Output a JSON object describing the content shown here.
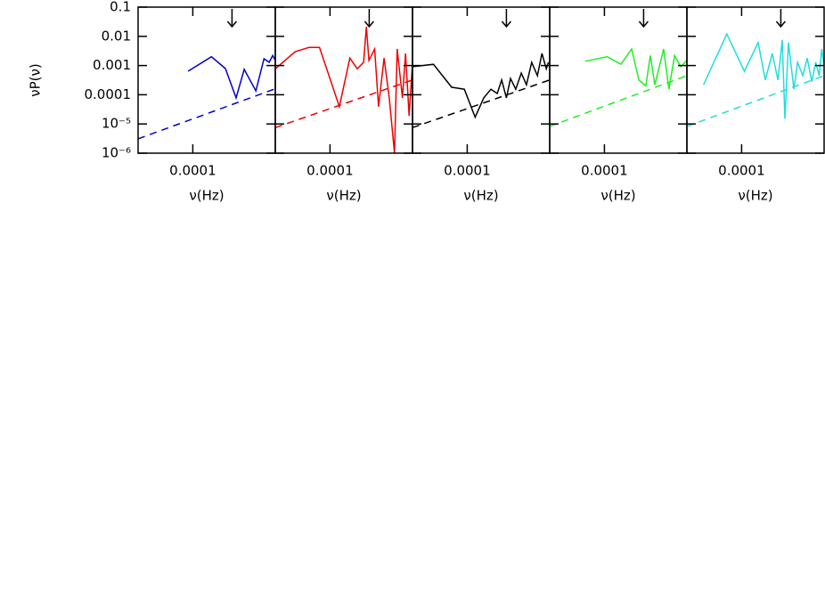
{
  "chart_data": [
    {
      "type": "line",
      "log_x": true,
      "log_y": true,
      "xlim": [
        3.8e-05,
        0.00043
      ],
      "ylim": [
        1e-06,
        0.1
      ],
      "xticks": [
        0.0001
      ],
      "xlabel": "ν(Hz)",
      "ylabel": "νP(ν)",
      "yticks": [
        0.1,
        0.01,
        0.001,
        0.0001,
        {
          "value": 1e-05,
          "label": "10⁻⁵"
        },
        {
          "value": 1e-06,
          "label": "10⁻⁶"
        }
      ],
      "arrow_x": 0.0002,
      "series": [
        {
          "color": "#0000cc",
          "style": "solid",
          "x": [
            9.2e-05,
            0.000139,
            0.000178,
            0.000215,
            0.000248,
            0.000305,
            0.000352,
            0.000386,
            0.000411,
            0.00043
          ],
          "values": [
            0.00064,
            0.002,
            0.00079,
            7.8e-05,
            0.00074,
            0.000135,
            0.0017,
            0.0013,
            0.0022,
            0.0015
          ]
        },
        {
          "color": "#0000cc",
          "style": "dashed",
          "x": [
            3.8e-05,
            0.00043
          ],
          "values": [
            3.1e-06,
            0.00016
          ]
        }
      ]
    },
    {
      "type": "line",
      "log_x": true,
      "log_y": true,
      "xlim": [
        3.8e-05,
        0.00043
      ],
      "ylim": [
        1e-06,
        0.1
      ],
      "xticks": [
        0.0001
      ],
      "xlabel": "ν(Hz)",
      "arrow_x": 0.0002,
      "series": [
        {
          "color": "#ee0000",
          "style": "solid",
          "x": [
            3.8e-05,
            5.4e-05,
            6.9e-05,
            8.3e-05,
            0.0001,
            0.000118,
            0.000142,
            0.000162,
            0.000181,
            0.00019,
            0.000199,
            0.00022,
            0.000236,
            0.00026,
            0.000285,
            0.000313,
            0.000328,
            0.00036,
            0.00038,
            0.000405,
            0.00043
          ],
          "values": [
            0.00077,
            0.003,
            0.0042,
            0.0042,
            0.00036,
            3.9e-05,
            0.0018,
            0.00077,
            0.00129,
            0.021,
            0.0015,
            0.0037,
            3.9e-05,
            0.0018,
            7.8e-05,
            1e-06,
            0.0037,
            7.8e-05,
            0.0026,
            1.9e-05,
            0.00129
          ]
        },
        {
          "color": "#ee0000",
          "style": "dashed",
          "x": [
            3.8e-05,
            0.00043
          ],
          "values": [
            7.5e-06,
            0.00032
          ]
        }
      ]
    },
    {
      "type": "line",
      "log_x": true,
      "log_y": true,
      "xlim": [
        3.8e-05,
        0.00043
      ],
      "ylim": [
        1e-06,
        0.1
      ],
      "xticks": [
        0.0001
      ],
      "xlabel": "ν(Hz)",
      "arrow_x": 0.0002,
      "series": [
        {
          "color": "#000000",
          "style": "solid",
          "x": [
            3.8e-05,
            5.5e-05,
            7.6e-05,
            9.5e-05,
            0.000115,
            0.000134,
            0.000152,
            0.00017,
            0.000184,
            0.0002,
            0.000215,
            0.000236,
            0.00026,
            0.000285,
            0.000313,
            0.000346,
            0.000375,
            0.000405,
            0.00042
          ],
          "values": [
            0.00091,
            0.0011,
            0.00018,
            0.000155,
            1.7e-05,
            7.8e-05,
            0.000155,
            0.00011,
            0.00032,
            7.8e-05,
            0.00036,
            0.000155,
            0.00055,
            0.00022,
            0.00129,
            0.00045,
            0.0026,
            0.00077,
            0.00129
          ]
        },
        {
          "color": "#000000",
          "style": "dashed",
          "x": [
            3.8e-05,
            0.00043
          ],
          "values": [
            7.5e-06,
            0.00032
          ]
        }
      ]
    },
    {
      "type": "line",
      "log_x": true,
      "log_y": true,
      "xlim": [
        3.8e-05,
        0.00043
      ],
      "ylim": [
        1e-06,
        0.1
      ],
      "xticks": [
        0.0001
      ],
      "xlabel": "ν(Hz)",
      "arrow_x": 0.0002,
      "series": [
        {
          "color": "#22ee22",
          "style": "solid",
          "x": [
            7.1e-05,
            0.000105,
            0.000134,
            0.000162,
            0.000184,
            0.000208,
            0.000225,
            0.000244,
            0.000264,
            0.000285,
            0.000313,
            0.000346,
            0.000386,
            0.00043
          ],
          "values": [
            0.0014,
            0.002,
            0.0011,
            0.0037,
            0.00032,
            0.0002,
            0.0022,
            0.00022,
            0.00091,
            0.0037,
            0.000155,
            0.0022,
            0.00091,
            0.0015
          ]
        },
        {
          "color": "#22ee22",
          "style": "dashed",
          "x": [
            3.8e-05,
            0.00043
          ],
          "values": [
            8.3e-06,
            0.00045
          ]
        }
      ]
    },
    {
      "type": "line",
      "log_x": true,
      "log_y": true,
      "xlim": [
        3.8e-05,
        0.00043
      ],
      "ylim": [
        1e-06,
        0.1
      ],
      "xticks": [
        0.0001
      ],
      "xlabel": "ν(Hz)",
      "arrow_x": 0.0002,
      "series": [
        {
          "color": "#22dddd",
          "style": "solid",
          "x": [
            5.1e-05,
            7.7e-05,
            0.000105,
            0.000134,
            0.000152,
            0.000172,
            0.00019,
            0.000205,
            0.000215,
            0.000229,
            0.000252,
            0.000269,
            0.000295,
            0.000319,
            0.000346,
            0.00037,
            0.000394,
            0.000413,
            0.00043
          ],
          "values": [
            0.00022,
            0.012,
            0.00064,
            0.0061,
            0.00032,
            0.0026,
            0.00032,
            0.0075,
            1.5e-05,
            0.0061,
            0.000155,
            0.00129,
            0.00045,
            0.0018,
            0.00028,
            0.00129,
            0.00045,
            0.0037,
            0.00091
          ]
        },
        {
          "color": "#22dddd",
          "style": "dashed",
          "x": [
            3.8e-05,
            0.00043
          ],
          "values": [
            8.3e-06,
            0.00045
          ]
        }
      ]
    }
  ]
}
